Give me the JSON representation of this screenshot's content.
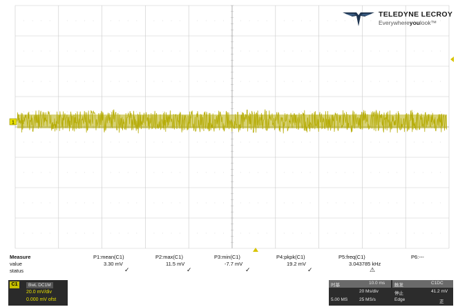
{
  "brand": {
    "name": "TELEDYNE LECROY",
    "tagline_pre": "Everywhere",
    "tagline_bold": "you",
    "tagline_post": "look",
    "tagline_mark": "™"
  },
  "trace": {
    "color": "#b7ad0a",
    "channel_marker": "1"
  },
  "measure": {
    "label": "Measure",
    "value_label": "value",
    "status_label": "status",
    "params": [
      {
        "label": "P1:mean(C1)",
        "value": "3.30 mV",
        "status": "✓"
      },
      {
        "label": "P2:max(C1)",
        "value": "11.5 mV",
        "status": "✓"
      },
      {
        "label": "P3:min(C1)",
        "value": "-7.7 mV",
        "status": "✓"
      },
      {
        "label": "P4:pkpk(C1)",
        "value": "19.2 mV",
        "status": "✓"
      },
      {
        "label": "P5:freq(C1)",
        "value": "3.043785 kHz",
        "status": "⚠"
      },
      {
        "label": "P6:---",
        "value": "",
        "status": ""
      }
    ]
  },
  "channel": {
    "name": "C1",
    "mode": "BwL DC1M",
    "scale": "20.0 mV/div",
    "offset": "0.000 mV ofst"
  },
  "timebase": {
    "head_left": "时基",
    "head_value": "10.0 ms",
    "head_right": "触发",
    "head_right_value": "C1DC",
    "row1_mid": "20 Ms/div",
    "row1_right": "停止",
    "row1_right_value": "41.2 mV",
    "row2_left": "5.00 MS",
    "row2_mid": "25 MS/s",
    "row2_right": "Edge",
    "row2_right_value": "正"
  }
}
